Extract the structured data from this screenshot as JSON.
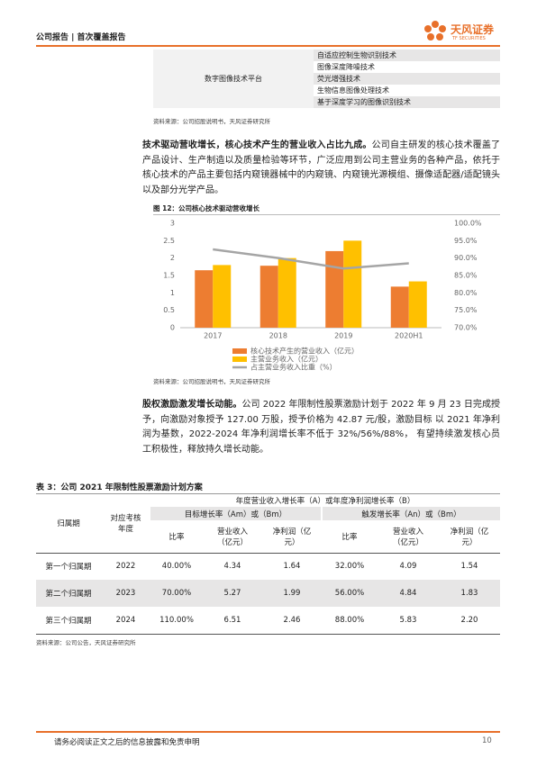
{
  "header": {
    "report_type": "公司报告 | 首次覆盖报告",
    "brand": "天风证券",
    "brand_en": "TF SECURITIES"
  },
  "tech_table": {
    "platform": "数字图像技术平台",
    "items": [
      "自适应控制生物识别技术",
      "图像深度降噪技术",
      "荧光增强技术",
      "生物信息图像处理技术",
      "基于深度学习的图像识别技术"
    ],
    "source": "资料来源：公司招股说明书，天风证券研究所"
  },
  "paragraph1": {
    "lead": "技术驱动营收增长，核心技术产生的营业收入占比九成。",
    "text": "公司自主研发的核心技术覆盖了产品设计、生产制造以及质量检验等环节，广泛应用到公司主营业务的各种产品，依托于核心技术的产品主要包括内窥镜器械中的内窥镜、内窥镜光源模组、摄像适配器/适配镜头以及部分光学产品。"
  },
  "chart_data": {
    "type": "bar",
    "title": "图 12：公司核心技术驱动营收增长",
    "categories": [
      "2017",
      "2018",
      "2019",
      "2020H1"
    ],
    "series": [
      {
        "name": "核心技术产生的营业收入（亿元）",
        "color": "#ED7D31",
        "values": [
          1.65,
          1.78,
          2.2,
          1.18
        ]
      },
      {
        "name": "主营业务收入（亿元）",
        "color": "#FFC000",
        "values": [
          1.8,
          2.0,
          2.5,
          1.33
        ]
      },
      {
        "name": "占主营业务收入比重（%）",
        "color": "#A5A5A5",
        "type": "line",
        "axis": "y2",
        "values": [
          92.5,
          90.0,
          87.0,
          88.5
        ]
      }
    ],
    "ylim": [
      0,
      3
    ],
    "yticks": [
      0,
      0.5,
      1,
      1.5,
      2,
      2.5,
      3
    ],
    "y2lim": [
      70,
      100
    ],
    "y2ticks": [
      {
        "value": 70,
        "label": "70.0%"
      },
      {
        "value": 75,
        "label": "75.0%"
      },
      {
        "value": 80,
        "label": "80.0%"
      },
      {
        "value": 85,
        "label": "85.0%"
      },
      {
        "value": 90,
        "label": "90.0%"
      },
      {
        "value": 95,
        "label": "95.0%"
      },
      {
        "value": 100,
        "label": "100.0%"
      }
    ],
    "grid": false,
    "source": "资料来源：公司招股说明书，天风证券研究所"
  },
  "paragraph2": {
    "lead": "股权激励激发增长动能。",
    "text": "公司 2022 年限制性股票激励计划于 2022 年 9 月 23 日完成授予，向激励对象授予 127.00 万股，授予价格为 42.87 元/股，激励目标 以 2021 年净利润为基数，2022-2024 年净利润增长率不低于 32%/56%/88%， 有望持续激发核心员工积极性，释放持久增长动能。"
  },
  "table3": {
    "title": "表 3：公司 2021 年限制性股票激励计划方案",
    "group_header": "年度营业收入增长率（A）或年度净利润增长率（B）",
    "col_period": "归属期",
    "col_year": "对应考核年度",
    "target_header": "目标增长率（Am）或（Bm）",
    "trigger_header": "触发增长率（An）或（Bm）",
    "sub_headers": [
      "比率",
      "营业收入（亿元）",
      "净利润（亿元）",
      "比率",
      "营业收入（亿元）",
      "净利润（亿元）"
    ],
    "rows": [
      [
        "第一个归属期",
        "2022",
        "40.00%",
        "4.34",
        "1.64",
        "32.00%",
        "4.09",
        "1.54"
      ],
      [
        "第二个归属期",
        "2023",
        "70.00%",
        "5.27",
        "1.99",
        "56.00%",
        "4.84",
        "1.83"
      ],
      [
        "第三个归属期",
        "2024",
        "110.00%",
        "6.51",
        "2.46",
        "88.00%",
        "5.83",
        "2.20"
      ]
    ],
    "source": "资料来源：公司公告，天风证券研究所"
  },
  "footer": {
    "disclaimer": "请务必阅读正文之后的信息披露和免责申明",
    "page": "10"
  }
}
